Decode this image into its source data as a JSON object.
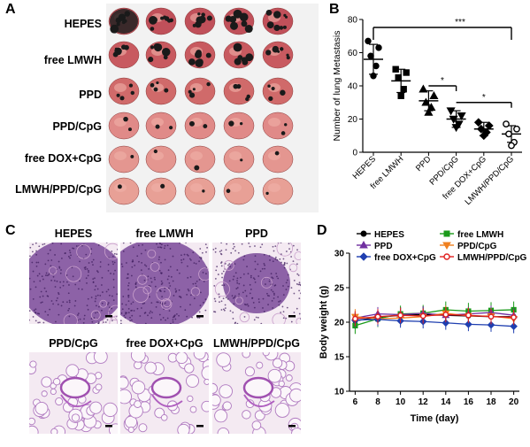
{
  "panels": {
    "A": {
      "letter": "A",
      "rows": [
        "HEPES",
        "free LMWH",
        "PPD",
        "PPD/CpG",
        "free DOX+CpG",
        "LMWH/PPD/CpG"
      ]
    },
    "B": {
      "letter": "B",
      "stars": [
        "***",
        "*",
        "*"
      ]
    },
    "C": {
      "letter": "C",
      "labels": [
        "HEPES",
        "free  LMWH",
        "PPD",
        "PPD/CpG",
        "free DOX+CpG",
        "LMWH/PPD/CpG"
      ]
    },
    "D": {
      "letter": "D"
    }
  },
  "chart_data": [
    {
      "type": "scatter",
      "ylabel": "Number of lung Metastasis",
      "categories": [
        "HEPES",
        "free LMWH",
        "PPD",
        "PPD/CpG",
        "free DOX+CpG",
        "LMWH/PPD/CpG"
      ],
      "ylim": [
        0,
        80
      ],
      "yticks": [
        0,
        20,
        40,
        60,
        80
      ],
      "groups": [
        {
          "name": "HEPES",
          "marker": "circle",
          "mean": 56,
          "sd": 9,
          "points": [
            67,
            63,
            58,
            52,
            46
          ]
        },
        {
          "name": "free LMWH",
          "marker": "square",
          "mean": 43,
          "sd": 7,
          "points": [
            50,
            48,
            45,
            38,
            34
          ]
        },
        {
          "name": "PPD",
          "marker": "triangle",
          "mean": 31,
          "sd": 6,
          "points": [
            38,
            34,
            30,
            27,
            24
          ]
        },
        {
          "name": "PPD/CpG",
          "marker": "triangle-down",
          "mean": 20,
          "sd": 5,
          "points": [
            25,
            22,
            20,
            17,
            15
          ]
        },
        {
          "name": "free DOX+CpG",
          "marker": "diamond",
          "mean": 14,
          "sd": 4,
          "points": [
            18,
            16,
            14,
            12,
            10
          ]
        },
        {
          "name": "LMWH/PPD/CpG",
          "marker": "open-circle",
          "mean": 11,
          "sd": 5,
          "points": [
            17,
            14,
            11,
            6,
            4
          ]
        }
      ],
      "significance": [
        {
          "from": "HEPES",
          "to": "LMWH/PPD/CpG",
          "label": "***"
        },
        {
          "from": "PPD",
          "to": "PPD/CpG",
          "label": "*"
        },
        {
          "from": "PPD/CpG",
          "to": "LMWH/PPD/CpG",
          "label": "*"
        }
      ]
    },
    {
      "type": "line",
      "xlabel": "Time (day)",
      "ylabel": "Body weight (g)",
      "x": [
        6,
        8,
        10,
        12,
        14,
        16,
        18,
        20
      ],
      "xlim": [
        5.5,
        20.5
      ],
      "ylim": [
        10,
        30
      ],
      "yticks": [
        10,
        15,
        20,
        25,
        30
      ],
      "legend_position": "top",
      "series": [
        {
          "name": "HEPES",
          "color": "#000000",
          "marker": "circle",
          "values": [
            20.2,
            20.7,
            21.0,
            21.1,
            21.0,
            20.9,
            20.8,
            20.8
          ],
          "err": 1.2
        },
        {
          "name": "free LMWH",
          "color": "#1a9a1a",
          "marker": "square",
          "values": [
            19.5,
            20.5,
            21.2,
            21.3,
            21.8,
            21.6,
            21.7,
            21.8
          ],
          "err": 1.2
        },
        {
          "name": "PPD",
          "color": "#7030a0",
          "marker": "triangle",
          "values": [
            20.6,
            21.2,
            21.1,
            21.3,
            21.0,
            21.2,
            21.4,
            21.0
          ],
          "err": 1.0
        },
        {
          "name": "PPD/CpG",
          "color": "#f08020",
          "marker": "triangle-down",
          "values": [
            20.8,
            20.5,
            20.6,
            20.8,
            21.3,
            20.9,
            20.9,
            20.5
          ],
          "err": 1.1
        },
        {
          "name": "free DOX+CpG",
          "color": "#1f3fb0",
          "marker": "diamond",
          "values": [
            20.3,
            20.4,
            20.2,
            20.1,
            19.9,
            19.7,
            19.6,
            19.4
          ],
          "err": 1.0
        },
        {
          "name": "LMWH/PPD/CpG",
          "color": "#e02020",
          "marker": "open-circle",
          "values": [
            20.5,
            20.8,
            21.0,
            20.9,
            21.1,
            21.0,
            20.8,
            20.7
          ],
          "err": 1.1
        }
      ]
    }
  ]
}
